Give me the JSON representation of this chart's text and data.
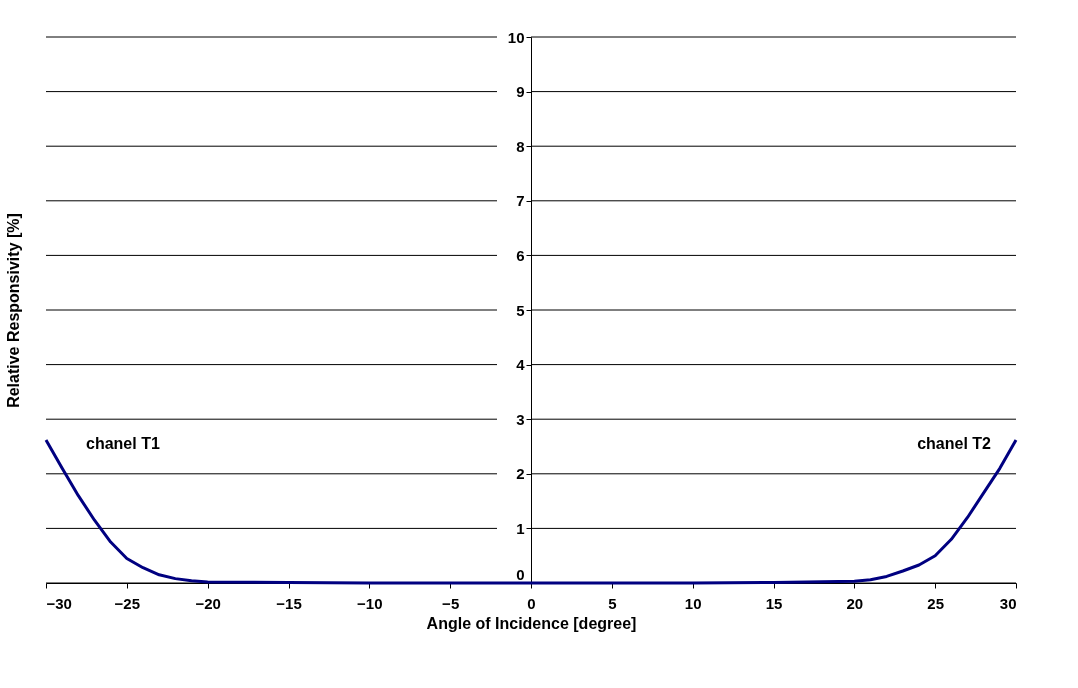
{
  "chart_data": {
    "type": "line",
    "xlabel": "Angle of Incidence [degree]",
    "ylabel": "Relative Responsivity [%]",
    "x": [
      -30,
      -29,
      -28,
      -27,
      -26,
      -25,
      -24,
      -23,
      -22,
      -21,
      -20,
      -15,
      -10,
      -5,
      0,
      5,
      10,
      15,
      20,
      21,
      22,
      23,
      24,
      25,
      26,
      27,
      28,
      29,
      30
    ],
    "series": [
      {
        "color": "#000080",
        "values": [
          2.62,
          2.1,
          1.6,
          1.15,
          0.75,
          0.45,
          0.28,
          0.15,
          0.08,
          0.04,
          0.02,
          0.01,
          0,
          0,
          0,
          0,
          0,
          0.01,
          0.03,
          0.06,
          0.12,
          0.22,
          0.33,
          0.5,
          0.8,
          1.2,
          1.65,
          2.1,
          2.62
        ]
      }
    ],
    "xlim": [
      -30,
      30
    ],
    "xticks": [
      -30,
      -25,
      -20,
      -15,
      -10,
      -5,
      0,
      5,
      10,
      15,
      20,
      25,
      30
    ],
    "ylim": [
      0,
      10
    ],
    "yticks": [
      0,
      1,
      2,
      3,
      4,
      5,
      6,
      7,
      8,
      9,
      10
    ],
    "grid": "y",
    "marker": "none",
    "line_style": "solid",
    "annotations": [
      "chanel T1",
      "chanel T2"
    ]
  }
}
